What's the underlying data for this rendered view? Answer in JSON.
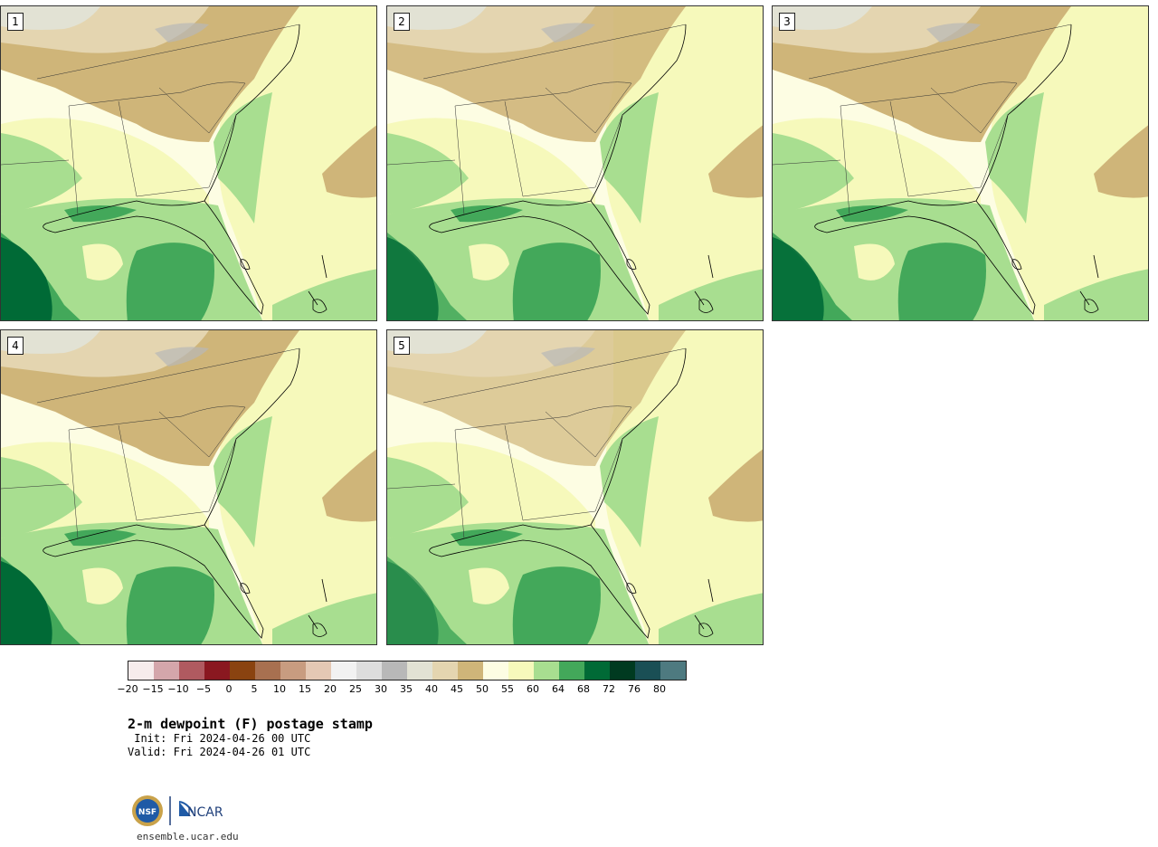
{
  "panels": [
    {
      "label": "1"
    },
    {
      "label": "2"
    },
    {
      "label": "3"
    },
    {
      "label": "4"
    },
    {
      "label": "5"
    }
  ],
  "colorbar": {
    "colors": [
      "#f6ecec",
      "#d4a6ab",
      "#b05a60",
      "#8a1820",
      "#8a4310",
      "#a87050",
      "#c89c80",
      "#e4c8b4",
      "#f2f2f2",
      "#dddddd",
      "#b8b8b8",
      "#e2e2d4",
      "#e4d5b0",
      "#cfb579",
      "#fdfde3",
      "#f6f9bb",
      "#a8de90",
      "#43a85a",
      "#006a36",
      "#003a20",
      "#1a4f55",
      "#4e7a80"
    ],
    "ticks": [
      "−20",
      "−15",
      "−10",
      "−5",
      "0",
      "5",
      "10",
      "15",
      "20",
      "25",
      "30",
      "35",
      "40",
      "45",
      "50",
      "55",
      "60",
      "64",
      "68",
      "72",
      "76",
      "80"
    ]
  },
  "title": "2-m dewpoint (F) postage stamp",
  "init": " Init: Fri 2024-04-26 00 UTC",
  "valid": "Valid: Fri 2024-04-26 01 UTC",
  "logos": {
    "nsf": "NSF",
    "ncar": "NCAR"
  },
  "site": "ensemble.ucar.edu"
}
